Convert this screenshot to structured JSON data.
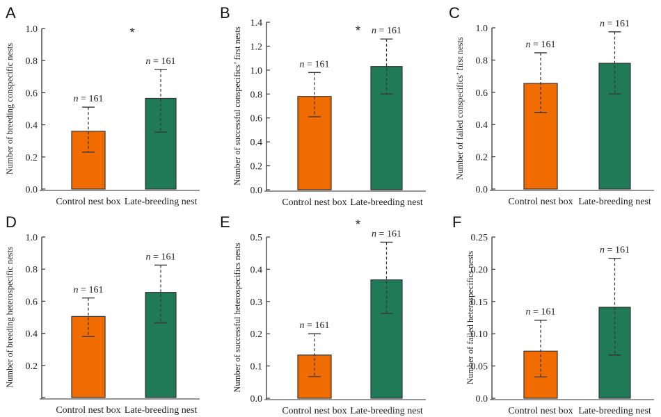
{
  "figure": {
    "colors": {
      "control": "#F06C00",
      "late": "#217A57",
      "axis": "#333333",
      "bar_edge": "#333333"
    }
  },
  "chart_data": [
    {
      "panel": "A",
      "type": "bar",
      "categories": [
        "Control nest box",
        "Late-breeding nest"
      ],
      "values": [
        0.36,
        0.565
      ],
      "error_lower": [
        0.23,
        0.355
      ],
      "error_upper": [
        0.51,
        0.745
      ],
      "n_labels": [
        "n = 161",
        "n = 161"
      ],
      "ylabel": "Number of breeding conspecific nests",
      "xlabel": "",
      "ylim": [
        0,
        1.0
      ],
      "yticks": [
        0.0,
        0.2,
        0.4,
        0.6,
        0.8,
        1.0
      ],
      "ytick_labels": [
        "0.0",
        "0.2",
        "0.4",
        "0.6",
        "0.8",
        "1.0"
      ],
      "significance": "*",
      "grid": false
    },
    {
      "panel": "B",
      "type": "bar",
      "categories": [
        "Control nest box",
        "Late-breeding nest"
      ],
      "values": [
        0.78,
        1.03
      ],
      "error_lower": [
        0.61,
        0.8
      ],
      "error_upper": [
        0.98,
        1.26
      ],
      "n_labels": [
        "n = 161",
        "n = 161"
      ],
      "ylabel": "Number of successful conspecifics’ first nests",
      "xlabel": "",
      "ylim": [
        0,
        1.4
      ],
      "yticks": [
        0.0,
        0.2,
        0.4,
        0.6,
        0.8,
        1.0,
        1.2,
        1.4
      ],
      "ytick_labels": [
        "0.0",
        "0.2",
        "0.4",
        "0.6",
        "0.8",
        "1.0",
        "1.2",
        "1.4"
      ],
      "significance": "*",
      "grid": false
    },
    {
      "panel": "C",
      "type": "bar",
      "categories": [
        "Control nest box",
        "Late-breeding nest"
      ],
      "values": [
        0.655,
        0.78
      ],
      "error_lower": [
        0.475,
        0.59
      ],
      "error_upper": [
        0.845,
        0.975
      ],
      "n_labels": [
        "n = 161",
        "n = 161"
      ],
      "ylabel": "Number of failed conspecifics’ first nests",
      "xlabel": "",
      "ylim": [
        0,
        1.0
      ],
      "yticks": [
        0.0,
        0.2,
        0.4,
        0.6,
        0.8,
        1.0
      ],
      "ytick_labels": [
        "0.0",
        "0.2",
        "0.4",
        "0.6",
        "0.8",
        "1.0"
      ],
      "significance": "",
      "grid": false
    },
    {
      "panel": "D",
      "type": "bar",
      "categories": [
        "Control nest box",
        "Late-breeding nest"
      ],
      "values": [
        0.505,
        0.655
      ],
      "error_lower": [
        0.38,
        0.465
      ],
      "error_upper": [
        0.62,
        0.825
      ],
      "n_labels": [
        "n = 161",
        "n = 161"
      ],
      "ylabel": "Number of breeding heterospecific nests",
      "xlabel": "",
      "ylim": [
        0,
        1.0
      ],
      "yticks": [
        0.0,
        0.2,
        0.4,
        0.6,
        0.8,
        1.0
      ],
      "ytick_labels": [
        "",
        "0.2",
        "0.4",
        "0.6",
        "0.8",
        "1.0"
      ],
      "significance": "",
      "grid": false
    },
    {
      "panel": "E",
      "type": "bar",
      "categories": [
        "Control nest box",
        "Late-breeding nest"
      ],
      "values": [
        0.134,
        0.367
      ],
      "error_lower": [
        0.067,
        0.263
      ],
      "error_upper": [
        0.2,
        0.484
      ],
      "n_labels": [
        "n = 161",
        "n = 161"
      ],
      "ylabel": "Number of successful  heterospecifics nests",
      "xlabel": "",
      "ylim": [
        0,
        0.5
      ],
      "yticks": [
        0.0,
        0.1,
        0.2,
        0.3,
        0.4,
        0.5
      ],
      "ytick_labels": [
        "0.0",
        "0.1",
        "0.2",
        "0.3",
        "0.4",
        "0.5"
      ],
      "significance": "*",
      "grid": false
    },
    {
      "panel": "F",
      "type": "bar",
      "categories": [
        "Control nest box",
        "Late-breeding nest"
      ],
      "values": [
        0.073,
        0.141
      ],
      "error_lower": [
        0.033,
        0.067
      ],
      "error_upper": [
        0.121,
        0.217
      ],
      "n_labels": [
        "n = 161",
        "n = 161"
      ],
      "ylabel": "Number of failed heterospecifics nests",
      "xlabel": "",
      "ylim": [
        0,
        0.25
      ],
      "yticks": [
        0.0,
        0.05,
        0.1,
        0.15,
        0.2,
        0.25
      ],
      "ytick_labels": [
        "0.0",
        "0.05",
        "0.10",
        "0.15",
        "0.20",
        "0.25"
      ],
      "significance": "",
      "grid": false
    }
  ]
}
